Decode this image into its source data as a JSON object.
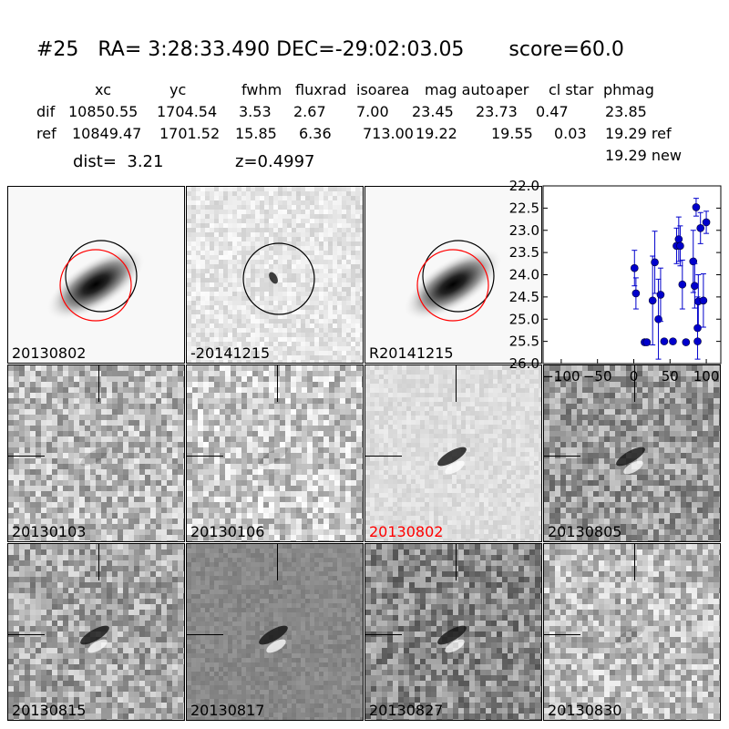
{
  "header": {
    "title": "#25   RA= 3:28:33.490 DEC=-29:02:03.05       score=60.0",
    "columns": [
      "xc",
      "yc",
      "fwhm",
      "fluxrad",
      "isoarea",
      "mag auto",
      "aper",
      "cl star",
      "phmag"
    ],
    "rows": [
      {
        "label": "dif",
        "values": [
          "10850.55",
          "1704.54",
          "3.53",
          "2.67",
          "7.00",
          "23.45",
          "23.73",
          "0.47",
          "23.85"
        ]
      },
      {
        "label": "ref",
        "values": [
          "10849.47",
          "1701.52",
          "15.85",
          "6.36",
          "713.00",
          "19.22",
          "19.55",
          "0.03",
          "19.29 ref"
        ]
      }
    ],
    "extra_phmag": "19.29 new",
    "dist": "dist=  3.21",
    "z": "z=0.4997"
  },
  "panels": [
    {
      "label": "20130802",
      "style": "galaxy",
      "circles": true,
      "bg": "#f8f8f8"
    },
    {
      "label": "-20141215",
      "style": "diff",
      "circles": false,
      "bg": "#e6e6e6"
    },
    {
      "label": "R20141215",
      "style": "galaxy",
      "circles": true,
      "bg": "#f8f8f8"
    },
    {
      "label": "20130103",
      "style": "noise",
      "bg": "#b8b8b8"
    },
    {
      "label": "20130106",
      "style": "noise",
      "bg": "#c8c8c8"
    },
    {
      "label": "20130802",
      "style": "smooth",
      "highlight": true,
      "bg": "#dedede"
    },
    {
      "label": "20130805",
      "style": "noise",
      "bg": "#9a9a9a"
    },
    {
      "label": "20130815",
      "style": "noise",
      "bg": "#a8a8a8"
    },
    {
      "label": "20130817",
      "style": "smooth",
      "bg": "#888888"
    },
    {
      "label": "20130827",
      "style": "noise",
      "bg": "#8a8a8a"
    },
    {
      "label": "20130830",
      "style": "noise",
      "bg": "#bcbcbc"
    }
  ],
  "colors": {
    "ref_circle": "#000000",
    "new_circle": "#ff0000",
    "highlight_label": "#ff0000",
    "points": "#0000cc"
  },
  "chart_data": {
    "type": "scatter",
    "title": "",
    "xlabel": "",
    "ylabel": "",
    "xlim": [
      -125,
      120
    ],
    "ylim": [
      26.0,
      22.0
    ],
    "y_inverted": true,
    "x_ticks": [
      "−100",
      "−50",
      "0",
      "50",
      "100"
    ],
    "x_tick_values": [
      -100,
      -50,
      0,
      50,
      100
    ],
    "y_ticks": [
      "22.0",
      "22.5",
      "23.0",
      "23.5",
      "24.0",
      "24.5",
      "25.0",
      "25.5",
      "26.0"
    ],
    "y_tick_values": [
      22.0,
      22.5,
      23.0,
      23.5,
      24.0,
      24.5,
      25.0,
      25.5,
      26.0
    ],
    "series": [
      {
        "points": [
          {
            "x": 1,
            "y": 23.85,
            "err": 0.4
          },
          {
            "x": 3,
            "y": 24.42,
            "err": 0.35
          },
          {
            "x": 15,
            "y": 25.52,
            "err": 0.05
          },
          {
            "x": 18,
            "y": 25.52,
            "err": 0.05
          },
          {
            "x": 26,
            "y": 24.58,
            "err": 1.0
          },
          {
            "x": 29,
            "y": 23.72,
            "err": 0.7
          },
          {
            "x": 34,
            "y": 25.0,
            "err": 0.9
          },
          {
            "x": 37,
            "y": 24.45,
            "err": 0.6
          },
          {
            "x": 42,
            "y": 25.5,
            "err": 0.05
          },
          {
            "x": 54,
            "y": 25.5,
            "err": 0.05
          },
          {
            "x": 59,
            "y": 23.35,
            "err": 0.4
          },
          {
            "x": 62,
            "y": 23.2,
            "err": 0.5
          },
          {
            "x": 64,
            "y": 23.35,
            "err": 0.45
          },
          {
            "x": 67,
            "y": 24.22,
            "err": 0.55
          },
          {
            "x": 72,
            "y": 25.52,
            "err": 0.05
          },
          {
            "x": 82,
            "y": 23.7,
            "err": 0.7
          },
          {
            "x": 84,
            "y": 24.25,
            "err": 0.5
          },
          {
            "x": 86,
            "y": 22.48,
            "err": 0.2
          },
          {
            "x": 88,
            "y": 25.2,
            "err": 0.7
          },
          {
            "x": 88,
            "y": 25.5,
            "err": 0.05
          },
          {
            "x": 89,
            "y": 24.6,
            "err": 0.6
          },
          {
            "x": 92,
            "y": 22.95,
            "err": 0.35
          },
          {
            "x": 96,
            "y": 24.58,
            "err": 0.6
          },
          {
            "x": 100,
            "y": 22.82,
            "err": 0.25
          }
        ]
      }
    ]
  }
}
